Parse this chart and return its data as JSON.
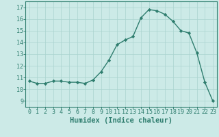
{
  "x": [
    0,
    1,
    2,
    3,
    4,
    5,
    6,
    7,
    8,
    9,
    10,
    11,
    12,
    13,
    14,
    15,
    16,
    17,
    18,
    19,
    20,
    21,
    22,
    23
  ],
  "y": [
    10.7,
    10.5,
    10.5,
    10.7,
    10.7,
    10.6,
    10.6,
    10.5,
    10.8,
    11.5,
    12.5,
    13.8,
    14.2,
    14.5,
    16.1,
    16.8,
    16.7,
    16.4,
    15.8,
    15.0,
    14.8,
    13.1,
    10.6,
    9.0
  ],
  "line_color": "#2e7d6e",
  "marker": "D",
  "markersize": 2.2,
  "linewidth": 1.0,
  "bg_color": "#cceae7",
  "grid_color": "#aad4d0",
  "xlabel": "Humidex (Indice chaleur)",
  "xlabel_fontsize": 7.5,
  "xlim": [
    -0.5,
    23.5
  ],
  "ylim": [
    8.5,
    17.5
  ],
  "yticks": [
    9,
    10,
    11,
    12,
    13,
    14,
    15,
    16,
    17
  ],
  "xticks": [
    0,
    1,
    2,
    3,
    4,
    5,
    6,
    7,
    8,
    9,
    10,
    11,
    12,
    13,
    14,
    15,
    16,
    17,
    18,
    19,
    20,
    21,
    22,
    23
  ],
  "tick_fontsize": 6.0,
  "tick_color": "#2e7d6e",
  "axis_color": "#2e7d6e",
  "font_family": "monospace"
}
